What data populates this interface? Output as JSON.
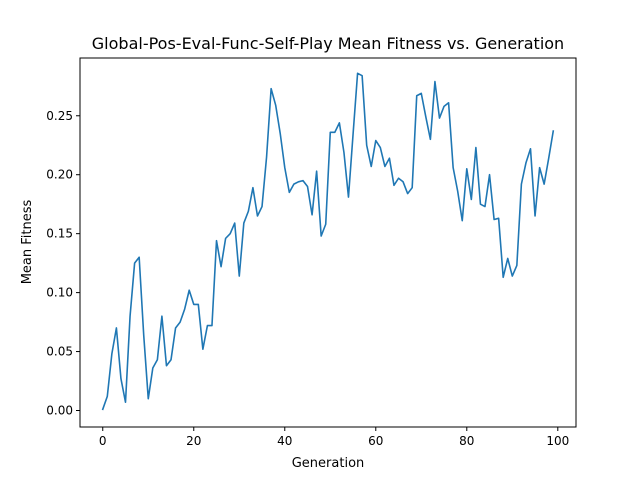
{
  "chart_data": {
    "type": "line",
    "title": "Global-Pos-Eval-Func-Self-Play Mean Fitness vs. Generation",
    "xlabel": "Generation",
    "ylabel": "Mean Fitness",
    "xlim": [
      -5,
      104
    ],
    "ylim": [
      -0.014,
      0.299
    ],
    "xticks": [
      0,
      20,
      40,
      60,
      80,
      100
    ],
    "xtick_labels": [
      "0",
      "20",
      "40",
      "60",
      "80",
      "100"
    ],
    "yticks": [
      0.0,
      0.05,
      0.1,
      0.15,
      0.2,
      0.25
    ],
    "ytick_labels": [
      "0.00",
      "0.05",
      "0.10",
      "0.15",
      "0.20",
      "0.25"
    ],
    "grid": false,
    "legend": "none",
    "color": "#1f77b4",
    "series": [
      {
        "x": [
          0,
          1,
          2,
          3,
          4,
          5,
          6,
          7,
          8,
          9,
          10,
          11,
          12,
          13,
          14,
          15,
          16,
          17,
          18,
          19,
          20,
          21,
          22,
          23,
          24,
          25,
          26,
          27,
          28,
          29,
          30,
          31,
          32,
          33,
          34,
          35,
          36,
          37,
          38,
          39,
          40,
          41,
          42,
          43,
          44,
          45,
          46,
          47,
          48,
          49,
          50,
          51,
          52,
          53,
          54,
          55,
          56,
          57,
          58,
          59,
          60,
          61,
          62,
          63,
          64,
          65,
          66,
          67,
          68,
          69,
          70,
          71,
          72,
          73,
          74,
          75,
          76,
          77,
          78,
          79,
          80,
          81,
          82,
          83,
          84,
          85,
          86,
          87,
          88,
          89,
          90,
          91,
          92,
          93,
          94,
          95,
          96,
          97,
          98,
          99
        ],
        "values": [
          0.001,
          0.012,
          0.048,
          0.07,
          0.027,
          0.007,
          0.08,
          0.125,
          0.13,
          0.064,
          0.01,
          0.036,
          0.043,
          0.08,
          0.038,
          0.043,
          0.07,
          0.075,
          0.086,
          0.102,
          0.09,
          0.09,
          0.052,
          0.072,
          0.072,
          0.144,
          0.122,
          0.146,
          0.15,
          0.159,
          0.114,
          0.159,
          0.169,
          0.189,
          0.165,
          0.173,
          0.215,
          0.273,
          0.259,
          0.235,
          0.206,
          0.185,
          0.192,
          0.194,
          0.195,
          0.19,
          0.166,
          0.203,
          0.148,
          0.158,
          0.236,
          0.236,
          0.244,
          0.219,
          0.181,
          0.234,
          0.286,
          0.284,
          0.225,
          0.207,
          0.229,
          0.223,
          0.207,
          0.214,
          0.191,
          0.197,
          0.194,
          0.184,
          0.189,
          0.267,
          0.269,
          0.249,
          0.23,
          0.279,
          0.248,
          0.258,
          0.261,
          0.206,
          0.186,
          0.161,
          0.205,
          0.179,
          0.223,
          0.175,
          0.173,
          0.2,
          0.162,
          0.163,
          0.113,
          0.129,
          0.114,
          0.123,
          0.192,
          0.21,
          0.222,
          0.165,
          0.206,
          0.192,
          0.214,
          0.237
        ]
      }
    ]
  }
}
